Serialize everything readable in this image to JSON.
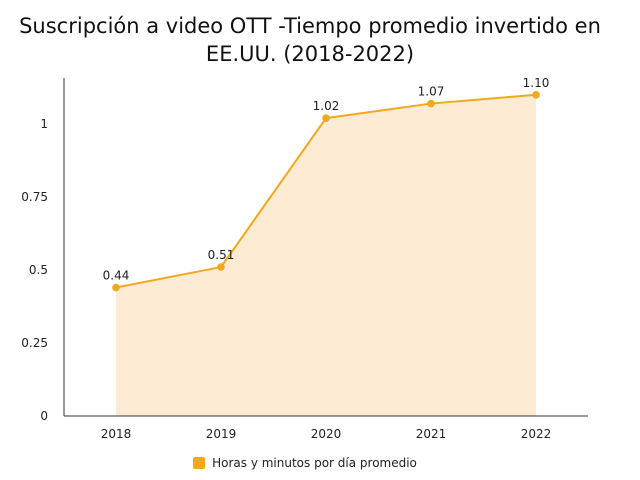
{
  "chart_data": {
    "type": "area",
    "title": "Suscripción a video OTT -Tiempo promedio invertido en EE.UU. (2018-2022)",
    "categories": [
      "2018",
      "2019",
      "2020",
      "2021",
      "2022"
    ],
    "series": [
      {
        "name": "Horas y minutos por día promedio",
        "values": [
          0.44,
          0.51,
          1.02,
          1.07,
          1.1
        ],
        "data_labels": [
          "0.44",
          "0.51",
          "1.02",
          "1.07",
          "1.10"
        ],
        "color": "#f2a81d",
        "fill_color": "#fdebd3"
      }
    ],
    "y_ticks": [
      "0",
      "0.25",
      "0.5",
      "0.75",
      "1"
    ],
    "xlabel": "",
    "ylabel": "",
    "ylim": [
      0,
      1.1
    ],
    "grid": false,
    "legend_position": "bottom"
  }
}
